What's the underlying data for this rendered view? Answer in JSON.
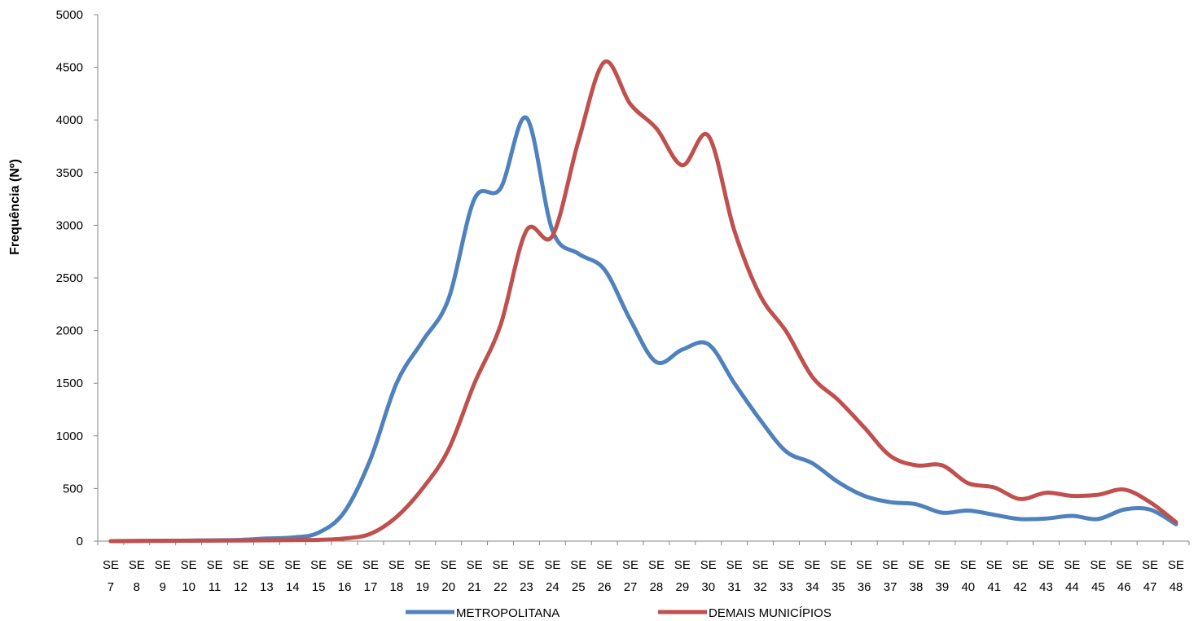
{
  "chart_data": {
    "type": "line",
    "title": "",
    "xlabel": "",
    "ylabel": "Frequência (Nº)",
    "ylim": [
      0,
      5000
    ],
    "yticks": [
      0,
      500,
      1000,
      1500,
      2000,
      2500,
      3000,
      3500,
      4000,
      4500,
      5000
    ],
    "grid": false,
    "legend_position": "bottom",
    "categories": [
      [
        "SE",
        "7"
      ],
      [
        "SE",
        "8"
      ],
      [
        "SE",
        "9"
      ],
      [
        "SE",
        "10"
      ],
      [
        "SE",
        "11"
      ],
      [
        "SE",
        "12"
      ],
      [
        "SE",
        "13"
      ],
      [
        "SE",
        "14"
      ],
      [
        "SE",
        "15"
      ],
      [
        "SE",
        "16"
      ],
      [
        "SE",
        "17"
      ],
      [
        "SE",
        "18"
      ],
      [
        "SE",
        "19"
      ],
      [
        "SE",
        "20"
      ],
      [
        "SE",
        "21"
      ],
      [
        "SE",
        "22"
      ],
      [
        "SE",
        "23"
      ],
      [
        "SE",
        "24"
      ],
      [
        "SE",
        "25"
      ],
      [
        "SE",
        "26"
      ],
      [
        "SE",
        "27"
      ],
      [
        "SE",
        "28"
      ],
      [
        "SE",
        "29"
      ],
      [
        "SE",
        "30"
      ],
      [
        "SE",
        "31"
      ],
      [
        "SE",
        "32"
      ],
      [
        "SE",
        "33"
      ],
      [
        "SE",
        "34"
      ],
      [
        "SE",
        "35"
      ],
      [
        "SE",
        "36"
      ],
      [
        "SE",
        "37"
      ],
      [
        "SE",
        "38"
      ],
      [
        "SE",
        "39"
      ],
      [
        "SE",
        "40"
      ],
      [
        "SE",
        "41"
      ],
      [
        "SE",
        "42"
      ],
      [
        "SE",
        "43"
      ],
      [
        "SE",
        "44"
      ],
      [
        "SE",
        "45"
      ],
      [
        "SE",
        "46"
      ],
      [
        "SE",
        "47"
      ],
      [
        "SE",
        "48"
      ]
    ],
    "series": [
      {
        "name": "METROPOLITANA",
        "color": "#4F81BD",
        "values": [
          0,
          2,
          3,
          5,
          8,
          12,
          25,
          35,
          80,
          280,
          780,
          1500,
          1900,
          2300,
          3250,
          3350,
          4020,
          2950,
          2730,
          2580,
          2100,
          1700,
          1820,
          1870,
          1500,
          1150,
          850,
          740,
          560,
          430,
          370,
          350,
          270,
          290,
          250,
          210,
          215,
          240,
          210,
          300,
          300,
          160
        ]
      },
      {
        "name": "DEMAIS MUNICÍPIOS",
        "color": "#C0504D",
        "values": [
          0,
          2,
          3,
          4,
          5,
          6,
          8,
          10,
          12,
          25,
          70,
          230,
          500,
          870,
          1500,
          2050,
          2950,
          2900,
          3800,
          4550,
          4150,
          3920,
          3570,
          3850,
          2950,
          2330,
          1990,
          1560,
          1340,
          1080,
          810,
          720,
          720,
          550,
          510,
          400,
          460,
          430,
          440,
          490,
          370,
          180
        ]
      }
    ]
  }
}
